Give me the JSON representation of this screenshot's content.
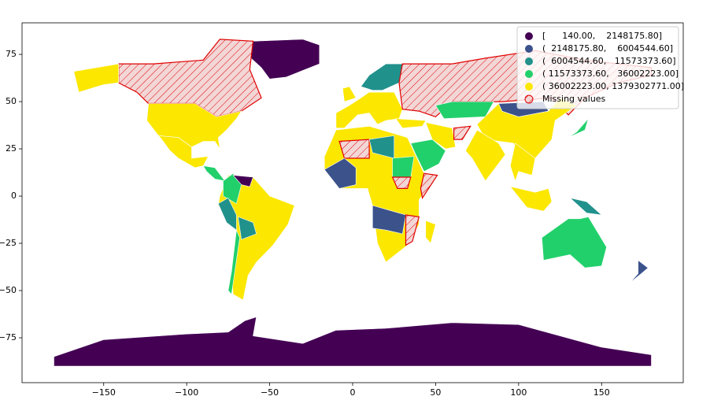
{
  "chart_data": {
    "type": "map",
    "xlim": [
      -199.2,
      199.2
    ],
    "ylim": [
      -98.75,
      91.7
    ],
    "xticks": [
      {
        "value": -150,
        "label": "−150"
      },
      {
        "value": -100,
        "label": "−100"
      },
      {
        "value": -50,
        "label": "−50"
      },
      0,
      50,
      100,
      150
    ],
    "yticks": [
      {
        "value": -75,
        "label": "−75"
      },
      {
        "value": -50,
        "label": "−50"
      },
      {
        "value": -25,
        "label": "−25"
      },
      0,
      25,
      50,
      75
    ],
    "classes": [
      {
        "label": "[      140.00,    2148175.80]",
        "color": "#440154"
      },
      {
        "label": "(  2148175.80,    6004544.60]",
        "color": "#3b528b"
      },
      {
        "label": "(  6004544.60,   11573373.60]",
        "color": "#21918c"
      },
      {
        "label": "( 11573373.60,   36002223.00]",
        "color": "#22d06b"
      },
      {
        "label": "( 36002223.00, 1379302771.00]",
        "color": "#fbe700"
      }
    ],
    "missing": {
      "label": "Missing values",
      "color": "#f3d6d6",
      "edgecolor": "#e00000"
    },
    "legend_position": "upper right"
  }
}
